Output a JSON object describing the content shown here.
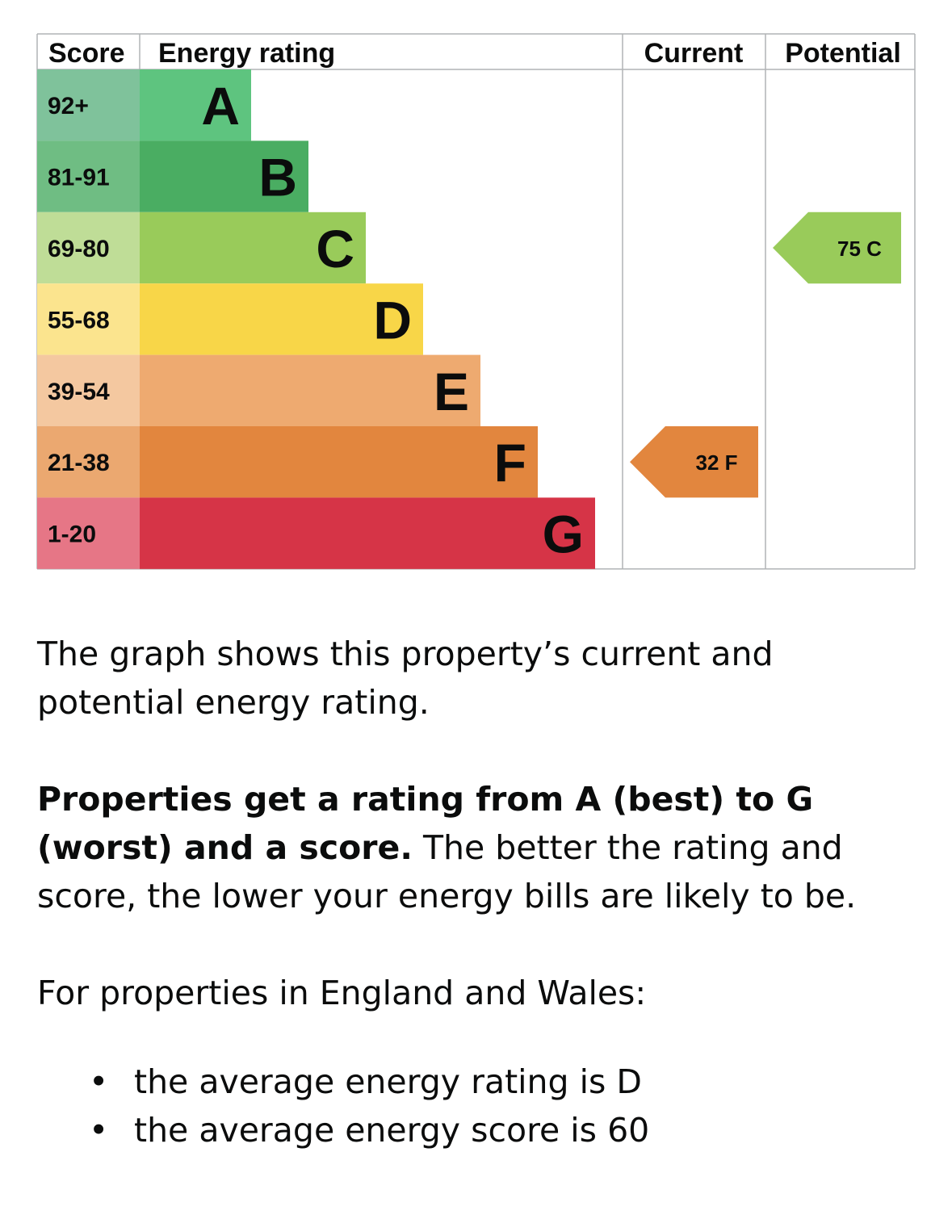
{
  "chart_data": {
    "type": "bar",
    "headers": {
      "score": "Score",
      "rating": "Energy rating",
      "current": "Current",
      "potential": "Potential"
    },
    "bands": [
      {
        "letter": "A",
        "range": "92+",
        "color": "#5ec47f",
        "score_color": "#7fc29b"
      },
      {
        "letter": "B",
        "range": "81-91",
        "color": "#4aad62",
        "score_color": "#6fbd83"
      },
      {
        "letter": "C",
        "range": "69-80",
        "color": "#99cb5a",
        "score_color": "#bfdd97"
      },
      {
        "letter": "D",
        "range": "55-68",
        "color": "#f8d648",
        "score_color": "#fbe48e"
      },
      {
        "letter": "E",
        "range": "39-54",
        "color": "#eeaa70",
        "score_color": "#f4c8a0"
      },
      {
        "letter": "F",
        "range": "21-38",
        "color": "#e2863e",
        "score_color": "#eba870"
      },
      {
        "letter": "G",
        "range": "1-20",
        "color": "#d63447",
        "score_color": "#e67686"
      }
    ],
    "current": {
      "score": 32,
      "letter": "F",
      "label": "32  F",
      "color": "#e2863e"
    },
    "potential": {
      "score": 75,
      "letter": "C",
      "label": "75  C",
      "color": "#99cb5a"
    }
  },
  "text": {
    "intro": "The graph shows this property’s current and potential energy rating.",
    "ratings_bold": "Properties get a rating from A (best) to G (worst) and a score.",
    "ratings_rest": " The better the rating and score, the lower your energy bills are likely to be.",
    "region": "For properties in England and Wales:",
    "bullets": [
      "the average energy rating is D",
      "the average energy score is 60"
    ]
  }
}
